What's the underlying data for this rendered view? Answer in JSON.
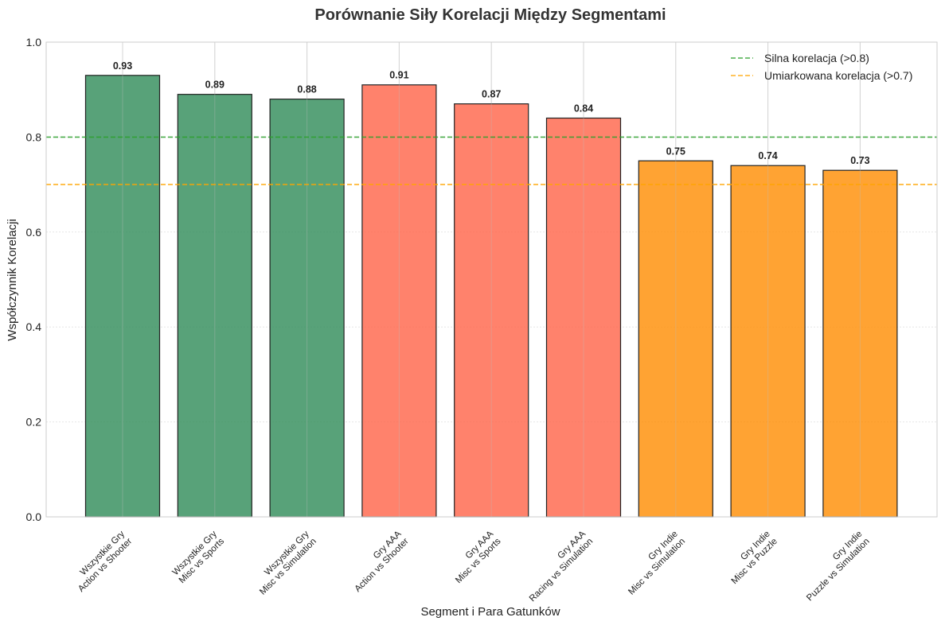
{
  "chart_data": {
    "type": "bar",
    "title": "Porównanie Siły Korelacji Między Segmentami",
    "xlabel": "Segment i Para Gatunków",
    "ylabel": "Współczynnik Korelacji",
    "ylim": [
      0,
      1.0
    ],
    "yticks": [
      "0.0",
      "0.2",
      "0.4",
      "0.6",
      "0.8",
      "1.0"
    ],
    "ytick_values": [
      0,
      0.2,
      0.4,
      0.6,
      0.8,
      1.0
    ],
    "grid": true,
    "legend_position": "top-right",
    "categories": [
      [
        "Wszystkie Gry",
        "Action vs Shooter"
      ],
      [
        "Wszystkie Gry",
        "Misc vs Sports"
      ],
      [
        "Wszystkie Gry",
        "Misc vs Simulation"
      ],
      [
        "Gry AAA",
        "Action vs Shooter"
      ],
      [
        "Gry AAA",
        "Misc vs Sports"
      ],
      [
        "Gry AAA",
        "Racing vs Simulation"
      ],
      [
        "Gry Indie",
        "Misc vs Simulation"
      ],
      [
        "Gry Indie",
        "Misc vs Puzzle"
      ],
      [
        "Gry Indie",
        "Puzzle vs Simulation"
      ]
    ],
    "values": [
      0.93,
      0.89,
      0.88,
      0.91,
      0.87,
      0.84,
      0.75,
      0.74,
      0.73
    ],
    "value_labels": [
      "0.93",
      "0.89",
      "0.88",
      "0.91",
      "0.87",
      "0.84",
      "0.75",
      "0.74",
      "0.73"
    ],
    "bar_colors": [
      "#2e8b57",
      "#2e8b57",
      "#2e8b57",
      "#ff6347",
      "#ff6347",
      "#ff6347",
      "#ff8c00",
      "#ff8c00",
      "#ff8c00"
    ],
    "reference_lines": [
      {
        "value": 0.8,
        "label": "Silna korelacja (>0.8)",
        "color": "#2ca02c",
        "style": "dashed"
      },
      {
        "value": 0.7,
        "label": "Umiarkowana korelacja (>0.7)",
        "color": "#ffa500",
        "style": "dashed"
      }
    ]
  }
}
